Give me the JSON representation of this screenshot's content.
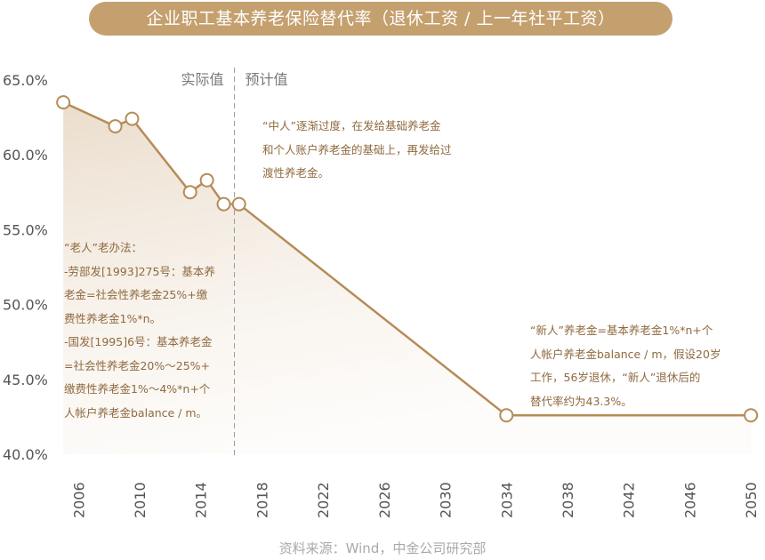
{
  "title": "企业职工基本养老保险替代率（退休工资 / 上一年社平工资）",
  "colors": {
    "title_bg": "#c5a06f",
    "line": "#b58c57",
    "text": "#8f6a3f",
    "axis_text": "#555555"
  },
  "chart_data": {
    "type": "line",
    "title": "企业职工基本养老保险替代率（退休工资 / 上一年社平工资）",
    "xlabel": "",
    "ylabel": "",
    "x_ticks": [
      2006,
      2010,
      2014,
      2018,
      2022,
      2026,
      2030,
      2034,
      2038,
      2042,
      2046,
      2050
    ],
    "y_ticks": [
      40,
      45,
      50,
      55,
      60,
      65
    ],
    "y_tick_labels": [
      "40.0%",
      "45.0%",
      "50.0%",
      "55.0%",
      "60.0%",
      "65.0%"
    ],
    "xlim": [
      2004.7,
      2050.4
    ],
    "ylim": [
      40,
      66
    ],
    "grid": false,
    "divider": {
      "x": 2016.2,
      "left_label": "实际值",
      "right_label": "预计值"
    },
    "series": [
      {
        "points": [
          {
            "x": 2005,
            "y": 63.5
          },
          {
            "x": 2008.4,
            "y": 61.9
          },
          {
            "x": 2009.5,
            "y": 62.4
          },
          {
            "x": 2013.3,
            "y": 57.5
          },
          {
            "x": 2014.4,
            "y": 58.3
          },
          {
            "x": 2015.5,
            "y": 56.7
          },
          {
            "x": 2016.5,
            "y": 56.7
          },
          {
            "x": 2034,
            "y": 42.6
          },
          {
            "x": 2050,
            "y": 42.6
          }
        ]
      }
    ]
  },
  "annotations": {
    "middle": [
      "“中人”逐渐过度，在发给基础养老金",
      "和个人账户养老金的基础上，再发给过",
      "渡性养老金。"
    ],
    "left": [
      "“老人”老办法：",
      "-劳部发[1993]275号：基本养",
      "老金=社会性养老金25%+缴",
      "费性养老金1%*n。",
      "-国发[1995]6号：基本养老金",
      "=社会性养老金20%～25%+",
      "缴费性养老金1%～4%*n+个",
      "人帐户养老金balance / m。"
    ],
    "right": [
      "“新人”养老金=基本养老金1%*n+个",
      "人帐户养老金balance / m，假设20岁",
      "工作，56岁退休，“新人”退休后的",
      "替代率约为43.3%。"
    ]
  },
  "source": "资料来源：Wind，中金公司研究部"
}
